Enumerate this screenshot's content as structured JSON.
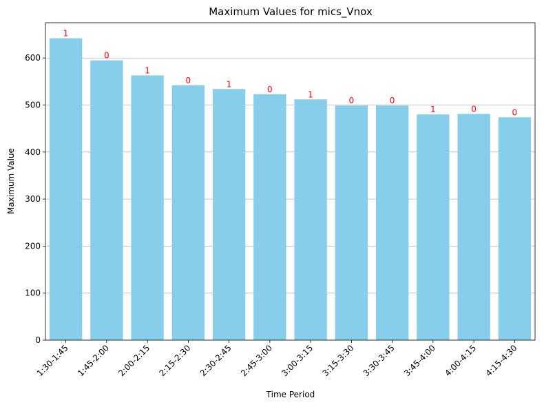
{
  "chart_data": {
    "type": "bar",
    "title": "Maximum Values for mics_Vnox",
    "xlabel": "Time Period",
    "ylabel": "Maximum Value",
    "categories": [
      "1:30-1:45",
      "1:45-2:00",
      "2:00-2:15",
      "2:15-2:30",
      "2:30-2:45",
      "2:45-3:00",
      "3:00-3:15",
      "3:15-3:30",
      "3:30-3:45",
      "3:45-4:00",
      "4:00-4:15",
      "4:15-4:30"
    ],
    "values": [
      642,
      595,
      563,
      542,
      534,
      523,
      512,
      499,
      499,
      480,
      481,
      474
    ],
    "bar_labels": [
      "1",
      "0",
      "1",
      "0",
      "1",
      "0",
      "1",
      "0",
      "0",
      "1",
      "0",
      "0"
    ],
    "yticks": [
      0,
      100,
      200,
      300,
      400,
      500,
      600
    ],
    "ylim": [
      0,
      675
    ],
    "grid": "y-axis",
    "bar_color": "#87ceeb",
    "label_color": "#ff0000",
    "grid_color": "#b0b0b0"
  }
}
